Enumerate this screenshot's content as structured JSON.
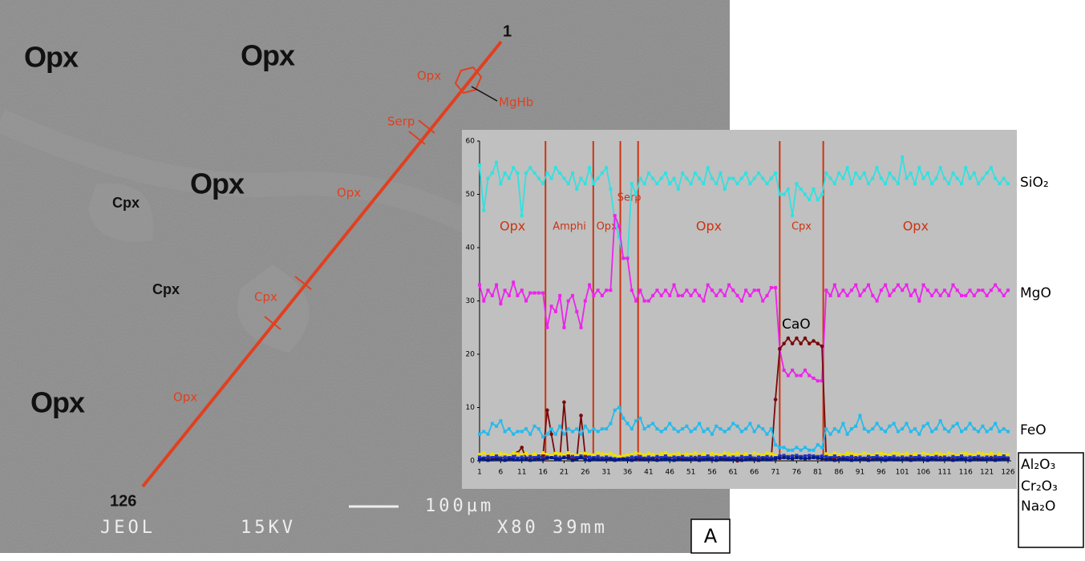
{
  "image": {
    "mineral_labels": [
      "Opx",
      "Opx",
      "Opx",
      "Opx",
      "Cpx",
      "Cpx"
    ],
    "trace_labels": [
      "Opx",
      "MgHb",
      "Serp",
      "Opx",
      "Cpx",
      "Opx"
    ],
    "point_start": "1",
    "point_end": "126",
    "scale": "100µm",
    "instrument": [
      "JEOL",
      "15KV",
      "X80 39mm"
    ],
    "panel": "A"
  },
  "chart_data": {
    "type": "line",
    "x": [
      1,
      2,
      3,
      4,
      5,
      6,
      7,
      8,
      9,
      10,
      11,
      12,
      13,
      14,
      15,
      16,
      17,
      18,
      19,
      20,
      21,
      22,
      23,
      24,
      25,
      26,
      27,
      28,
      29,
      30,
      31,
      32,
      33,
      34,
      35,
      36,
      37,
      38,
      39,
      40,
      41,
      42,
      43,
      44,
      45,
      46,
      47,
      48,
      49,
      50,
      51,
      52,
      53,
      54,
      55,
      56,
      57,
      58,
      59,
      60,
      61,
      62,
      63,
      64,
      65,
      66,
      67,
      68,
      69,
      70,
      71,
      72,
      73,
      74,
      75,
      76,
      77,
      78,
      79,
      80,
      81,
      82,
      83,
      84,
      85,
      86,
      87,
      88,
      89,
      90,
      91,
      92,
      93,
      94,
      95,
      96,
      97,
      98,
      99,
      100,
      101,
      102,
      103,
      104,
      105,
      106,
      107,
      108,
      109,
      110,
      111,
      112,
      113,
      114,
      115,
      116,
      117,
      118,
      119,
      120,
      121,
      122,
      123,
      124,
      125,
      126
    ],
    "xlim": [
      1,
      126
    ],
    "xticks": [
      1,
      6,
      11,
      16,
      21,
      26,
      31,
      36,
      41,
      46,
      51,
      56,
      61,
      66,
      71,
      76,
      81,
      86,
      91,
      96,
      101,
      106,
      111,
      116,
      121,
      126
    ],
    "ylim": [
      0,
      60
    ],
    "yticks": [
      0,
      10,
      20,
      30,
      40,
      50,
      60
    ],
    "boundaries": [
      16.6,
      27.9,
      34.3,
      38.5,
      72,
      82.3
    ],
    "zones": [
      "Opx",
      "Amphi",
      "Opx",
      "Serp",
      "Opx",
      "Cpx",
      "Opx"
    ],
    "series": [
      {
        "name": "SiO₂",
        "color": "#33e0e0",
        "values": [
          55.5,
          47,
          53,
          54,
          56,
          52,
          54,
          53,
          55,
          54,
          46,
          54,
          55,
          54,
          53,
          52,
          54,
          53,
          55,
          54,
          53,
          52,
          54,
          51,
          53,
          52,
          55,
          52,
          53,
          54,
          55,
          51,
          45,
          42,
          38,
          38,
          52,
          50,
          53,
          52,
          54,
          53,
          52,
          53,
          54,
          52,
          53,
          51,
          54,
          53,
          52,
          54,
          53,
          52,
          55,
          53,
          52,
          54,
          51,
          53,
          53,
          52,
          53,
          54,
          52,
          53,
          54,
          53,
          52,
          53,
          54,
          50,
          50,
          51,
          46,
          52,
          51,
          50,
          49,
          51,
          49,
          50,
          54,
          53,
          52,
          54,
          53,
          55,
          52,
          54,
          53,
          54,
          52,
          53,
          55,
          53,
          52,
          54,
          53,
          52,
          57,
          53,
          54,
          52,
          55,
          53,
          54,
          52,
          53,
          55,
          53,
          52,
          54,
          53,
          52,
          55,
          53,
          54,
          52,
          53,
          54,
          55,
          53,
          52,
          53,
          52
        ]
      },
      {
        "name": "MgO",
        "color": "#ee22ee",
        "values": [
          33,
          30,
          32,
          31,
          33,
          29.5,
          32,
          31,
          33.5,
          31,
          32,
          30,
          31.5,
          31.5,
          31.5,
          31.5,
          25,
          29,
          28,
          31,
          25,
          30,
          31,
          28,
          25,
          30,
          33,
          31,
          32,
          31,
          32,
          32,
          46,
          44,
          38,
          38,
          32,
          30,
          32,
          30,
          30,
          31,
          32,
          31,
          32,
          31,
          33,
          31,
          31,
          32,
          31,
          32,
          31,
          30,
          33,
          32,
          31,
          32,
          31,
          33,
          32,
          31,
          30,
          32,
          31,
          32,
          32,
          30,
          31,
          32.5,
          32.5,
          21,
          17,
          16,
          17,
          16,
          16,
          17,
          16,
          15.5,
          15,
          15,
          32,
          31,
          33,
          31,
          32,
          31,
          32,
          33,
          31,
          32,
          33,
          31,
          30,
          32,
          33,
          31,
          32,
          33,
          32,
          33,
          31,
          32,
          30,
          33,
          32,
          31,
          32,
          31,
          32,
          31,
          33,
          32,
          31,
          31,
          32,
          31,
          32,
          32,
          31,
          32,
          33,
          32,
          31,
          32
        ]
      },
      {
        "name": "CaO",
        "color": "#7a0a0a",
        "values": [
          0.5,
          0.5,
          0.6,
          0.4,
          0.5,
          0.5,
          0.6,
          0.5,
          0.4,
          1.5,
          2.5,
          0.5,
          0.6,
          0.5,
          0.5,
          1,
          9.5,
          5,
          0.5,
          0.5,
          11,
          1,
          0.5,
          0.5,
          8.5,
          1,
          0.5,
          0.5,
          0.6,
          0.5,
          0.5,
          0.4,
          0.3,
          0.3,
          0.4,
          0.5,
          0.5,
          0.6,
          0.5,
          0.4,
          0.5,
          0.5,
          0.6,
          0.5,
          0.4,
          0.5,
          0.6,
          0.5,
          0.5,
          0.4,
          0.5,
          0.6,
          0.5,
          0.4,
          0.5,
          0.5,
          0.6,
          0.5,
          0.4,
          0.5,
          0.5,
          0,
          0.5,
          0.6,
          0.5,
          0.4,
          0.5,
          0.6,
          0.5,
          0.5,
          11.5,
          21,
          22,
          23,
          22,
          23,
          22,
          23,
          22,
          22.5,
          22,
          21.5,
          0.6,
          0.5,
          0.5,
          0.6,
          0.4,
          0.5,
          0.5,
          0.6,
          0.5,
          0.4,
          0.5,
          0.6,
          0.5,
          0.5,
          0.4,
          0.6,
          0.5,
          0.5,
          0.6,
          0.5,
          0.4,
          0.5,
          0.6,
          0.5,
          0.5,
          0.4,
          0.5,
          0.6,
          0.5,
          0.5,
          0.6,
          0.4,
          0.5,
          0.5,
          0.6,
          0.5,
          0.4,
          0.5,
          0.5,
          0.6,
          0.5,
          0.4,
          0.5,
          0.5
        ]
      },
      {
        "name": "FeO",
        "color": "#22bbee",
        "values": [
          5,
          5.5,
          5,
          7,
          6.5,
          7.5,
          5.5,
          6,
          5,
          5.5,
          5.5,
          6,
          5,
          6.5,
          6,
          4.5,
          5,
          6,
          5,
          6.5,
          5,
          6,
          5.5,
          6,
          5,
          6.5,
          5.5,
          6,
          5.5,
          6,
          6,
          7,
          9.5,
          10,
          8,
          7,
          6,
          7.5,
          8,
          6,
          6.5,
          7,
          6,
          5.5,
          6,
          7,
          6,
          5.5,
          6,
          6.5,
          5.5,
          6,
          7,
          5.5,
          6,
          5,
          6.5,
          6,
          5.5,
          6,
          7,
          6.5,
          5.5,
          6,
          7,
          5.5,
          6.5,
          6,
          5,
          6,
          3,
          2.5,
          2.5,
          2,
          2,
          2.5,
          2,
          2.5,
          2,
          2,
          3,
          2.5,
          6,
          5,
          6,
          5.5,
          7,
          5,
          6,
          6.5,
          8.5,
          6,
          5.5,
          6,
          7,
          6,
          5.5,
          6.5,
          7,
          5.5,
          6,
          7,
          5.5,
          6,
          5,
          6.5,
          7,
          5.5,
          6,
          7.5,
          6,
          5.5,
          6.5,
          7,
          5.5,
          6,
          7,
          6,
          5.5,
          6.5,
          5.5,
          6,
          7,
          5.5,
          6,
          5.5
        ]
      },
      {
        "name": "Al₂O₃",
        "color": "#f0e000",
        "values": [
          1.2,
          1.5,
          1,
          1.3,
          1.1,
          1.4,
          1.2,
          1,
          1.5,
          1.3,
          1.2,
          1.4,
          1,
          1.3,
          1.1,
          1.5,
          1.2,
          1,
          1.4,
          1.3,
          1.1,
          1.5,
          1.2,
          1,
          1.3,
          1.4,
          1.2,
          1.1,
          1.5,
          1.3,
          1.2,
          1.4,
          1,
          0.8,
          0.9,
          1.1,
          1.2,
          1.5,
          1.3,
          1.1,
          1.4,
          1.2,
          1,
          1.3,
          1.5,
          1.1,
          1.2,
          1.4,
          1,
          1.3,
          1.2,
          1.5,
          1.1,
          1.3,
          1,
          1.4,
          1.2,
          1.1,
          1.5,
          1.3,
          1.2,
          1.4,
          1,
          1.3,
          1.1,
          1.5,
          1.2,
          1,
          1.4,
          1.3,
          1,
          0.8,
          0.7,
          0.9,
          0.8,
          0.7,
          0.8,
          0.9,
          0.7,
          0.8,
          0.9,
          0.8,
          1.3,
          1.1,
          1.5,
          1.2,
          1,
          1.4,
          1.3,
          1.2,
          1.1,
          1.5,
          1.2,
          1,
          1.3,
          1.4,
          1.2,
          1.1,
          1.5,
          1.3,
          1.2,
          1.4,
          1,
          1.3,
          1.1,
          1.5,
          1.2,
          1,
          1.4,
          1.3,
          1.1,
          1.5,
          1.2,
          1,
          1.3,
          1.4,
          1.2,
          1.1,
          1.5,
          1.3,
          1.2,
          1.4,
          1,
          1.3,
          1.1,
          1.2
        ]
      },
      {
        "name": "Cr₂O₃",
        "color": "#2233cc",
        "values": [
          0.7,
          0.5,
          0.8,
          0.6,
          0.9,
          0.5,
          0.7,
          0.6,
          0.8,
          0.5,
          0.7,
          0.5,
          0.8,
          0.6,
          0.9,
          0.5,
          0.7,
          0.6,
          0.8,
          0.5,
          0.7,
          0.5,
          0.8,
          0.6,
          0.9,
          0.5,
          0.7,
          0.6,
          0.8,
          0.5,
          0.7,
          0.5,
          0.4,
          0.3,
          0.4,
          0.5,
          0.7,
          0.6,
          0.8,
          0.5,
          0.7,
          0.5,
          0.8,
          0.6,
          0.9,
          0.5,
          0.7,
          0.6,
          0.8,
          0.5,
          0.7,
          0.5,
          0.8,
          0.6,
          0.9,
          0.5,
          0.7,
          0.6,
          0.8,
          0.5,
          0.7,
          0.5,
          0.8,
          0.6,
          0.9,
          0.5,
          0.7,
          0.6,
          0.8,
          0.5,
          0.6,
          0.9,
          1,
          0.8,
          0.9,
          1,
          0.8,
          0.9,
          1,
          0.9,
          0.8,
          0.9,
          0.8,
          0.6,
          0.9,
          0.5,
          0.7,
          0.6,
          0.8,
          0.5,
          0.7,
          0.5,
          0.8,
          0.6,
          0.9,
          0.5,
          0.7,
          0.6,
          0.8,
          0.5,
          0.7,
          0.5,
          0.8,
          0.6,
          0.9,
          0.5,
          0.7,
          0.6,
          0.8,
          0.5,
          0.7,
          0.5,
          0.8,
          0.6,
          0.9,
          0.5,
          0.7,
          0.6,
          0.8,
          0.5,
          0.7,
          0.5,
          0.8,
          0.6,
          0.9,
          0.5
        ]
      },
      {
        "name": "Na₂O",
        "color": "#001a80",
        "values": [
          0.2,
          0.3,
          0.1,
          0.2,
          0.3,
          0.2,
          0.1,
          0.3,
          0.2,
          0.2,
          0.2,
          0.3,
          0.1,
          0.2,
          0.3,
          0.2,
          0.5,
          0.6,
          0.3,
          0.2,
          0.6,
          0.5,
          0.1,
          0.3,
          0.6,
          0.2,
          0.1,
          0.3,
          0.2,
          0.2,
          0.2,
          0.3,
          0.1,
          0.2,
          0.3,
          0.2,
          0.1,
          0.3,
          0.2,
          0.2,
          0.2,
          0.3,
          0.1,
          0.2,
          0.3,
          0.2,
          0.1,
          0.3,
          0.2,
          0.2,
          0.2,
          0.3,
          0.1,
          0.2,
          0.3,
          0.2,
          0.1,
          0.3,
          0.2,
          0.2,
          0.2,
          0.3,
          0.1,
          0.2,
          0.3,
          0.2,
          0.1,
          0.3,
          0.2,
          0.2,
          0.4,
          0.5,
          0.6,
          0.5,
          0.4,
          0.6,
          0.5,
          0.4,
          0.5,
          0.6,
          0.5,
          0.4,
          0.2,
          0.3,
          0.1,
          0.2,
          0.3,
          0.2,
          0.1,
          0.2,
          0.2,
          0.3,
          0.1,
          0.2,
          0.3,
          0.2,
          0.1,
          0.3,
          0.2,
          0.2,
          0.2,
          0.3,
          0.1,
          0.2,
          0.3,
          0.2,
          0.1,
          0.3,
          0.2,
          0.2,
          0.2,
          0.3,
          0.1,
          0.2,
          0.3,
          0.2,
          0.1,
          0.3,
          0.2,
          0.2,
          0.2,
          0.3,
          0.1,
          0.2,
          0.3,
          0.2
        ]
      }
    ]
  }
}
